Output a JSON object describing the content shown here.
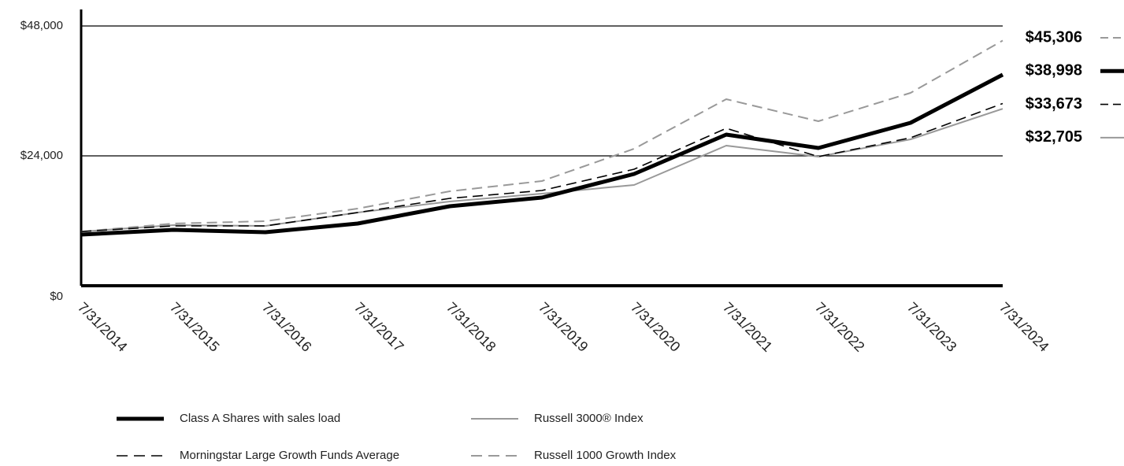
{
  "chart_data": {
    "type": "line",
    "x": [
      "7/31/2014",
      "7/31/2015",
      "7/31/2016",
      "7/31/2017",
      "7/31/2018",
      "7/31/2019",
      "7/31/2020",
      "7/31/2021",
      "7/31/2022",
      "7/31/2023",
      "7/31/2024"
    ],
    "ylim": [
      0,
      48000
    ],
    "yticks": [
      {
        "value": 0,
        "label": "$0"
      },
      {
        "value": 24000,
        "label": "$24,000"
      },
      {
        "value": 48000,
        "label": "$48,000"
      }
    ],
    "grid": true,
    "series": [
      {
        "name": "Class A Shares with sales load",
        "color": "#000000",
        "dashed": false,
        "values": [
          9450,
          10327,
          9891,
          11491,
          14691,
          16291,
          20655,
          27927,
          25455,
          30109,
          38998
        ],
        "value_labels": [
          null,
          null,
          null,
          null,
          null,
          null,
          null,
          null,
          null,
          null,
          "$38,998"
        ]
      },
      {
        "name": "Russell 3000® Index",
        "color": "#999999",
        "dashed": false,
        "values": [
          10000,
          11200,
          11055,
          13527,
          15564,
          17018,
          18618,
          25891,
          23855,
          27055,
          32705
        ],
        "value_labels": [
          null,
          null,
          null,
          null,
          null,
          null,
          null,
          null,
          null,
          null,
          "$32,705"
        ]
      },
      {
        "name": "Morningstar Large Growth Funds Average",
        "color": "#000000",
        "dashed": true,
        "values": [
          10000,
          11055,
          11055,
          13527,
          16145,
          17600,
          21527,
          29091,
          23855,
          27345,
          33673
        ],
        "value_labels": [
          null,
          null,
          null,
          null,
          null,
          null,
          null,
          null,
          null,
          null,
          "$33,673"
        ]
      },
      {
        "name": "Russell 1000 Growth Index",
        "color": "#999999",
        "dashed": true,
        "values": [
          10000,
          11491,
          11927,
          14255,
          17455,
          19345,
          25309,
          34473,
          30400,
          35636,
          45306
        ],
        "value_labels": [
          null,
          null,
          null,
          null,
          null,
          null,
          null,
          null,
          null,
          null,
          "$45,306"
        ]
      }
    ]
  }
}
